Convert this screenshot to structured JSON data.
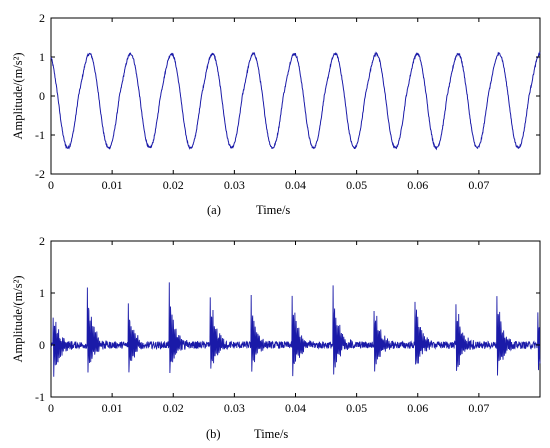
{
  "chart_data": [
    {
      "type": "line",
      "panel_label": "(a)",
      "xlabel": "Time/s",
      "ylabel": "Amplitude/(m/s²)",
      "xlim": [
        0,
        0.08
      ],
      "ylim": [
        -2,
        2
      ],
      "x_ticks": [
        0,
        0.01,
        0.02,
        0.03,
        0.04,
        0.05,
        0.06,
        0.07
      ],
      "x_tick_labels": [
        "0",
        "0.01",
        "0.02",
        "0.03",
        "0.04",
        "0.05",
        "0.06",
        "0.07"
      ],
      "y_ticks": [
        -2,
        -1,
        0,
        1,
        2
      ],
      "y_tick_labels": [
        "-2",
        "-1",
        "0",
        "1",
        "2"
      ],
      "grid": false,
      "series_color": "#1a1aa8",
      "signal": {
        "shape": "periodic waveform",
        "period": 0.0067,
        "peak_max": 1.1,
        "trough_min": -1.6,
        "trough_times": [
          0.0028,
          0.0095,
          0.0162,
          0.0229,
          0.0296,
          0.0363,
          0.043,
          0.0497,
          0.0564,
          0.0631,
          0.0698,
          0.0765
        ],
        "peak_times": [
          0.0008,
          0.0061,
          0.0128,
          0.0195,
          0.0262,
          0.0329,
          0.0396,
          0.0463,
          0.053,
          0.0597,
          0.0664,
          0.0731
        ]
      }
    },
    {
      "type": "line",
      "panel_label": "(b)",
      "xlabel": "Time/s",
      "ylabel": "Amplitude/(m/s²)",
      "xlim": [
        0,
        0.08
      ],
      "ylim": [
        -1,
        2
      ],
      "x_ticks": [
        0,
        0.01,
        0.02,
        0.03,
        0.04,
        0.05,
        0.06,
        0.07
      ],
      "x_tick_labels": [
        "0",
        "0.01",
        "0.02",
        "0.03",
        "0.04",
        "0.05",
        "0.06",
        "0.07"
      ],
      "y_ticks": [
        -1,
        0,
        1,
        2
      ],
      "y_tick_labels": [
        "-1",
        "0",
        "1",
        "2"
      ],
      "grid": false,
      "series_color": "#1a1aa8",
      "signal": {
        "shape": "periodic decaying impulses",
        "period": 0.0067,
        "impulse_times": [
          0.0003,
          0.0059,
          0.0126,
          0.0193,
          0.026,
          0.0327,
          0.0394,
          0.0461,
          0.0528,
          0.0595,
          0.0662,
          0.0729,
          0.0796
        ],
        "impulse_peaks": [
          0.8,
          1.3,
          0.95,
          1.25,
          1.15,
          1.0,
          1.2,
          1.25,
          1.0,
          1.15,
          1.0,
          1.2,
          0.8
        ],
        "impulse_troughs": [
          -0.95,
          -0.8,
          -0.7,
          -0.75,
          -0.8,
          -0.7,
          -0.85,
          -0.75,
          -0.75,
          -0.7,
          -0.8,
          -0.75,
          -0.7
        ],
        "baseline_noise": 0.07
      }
    }
  ]
}
